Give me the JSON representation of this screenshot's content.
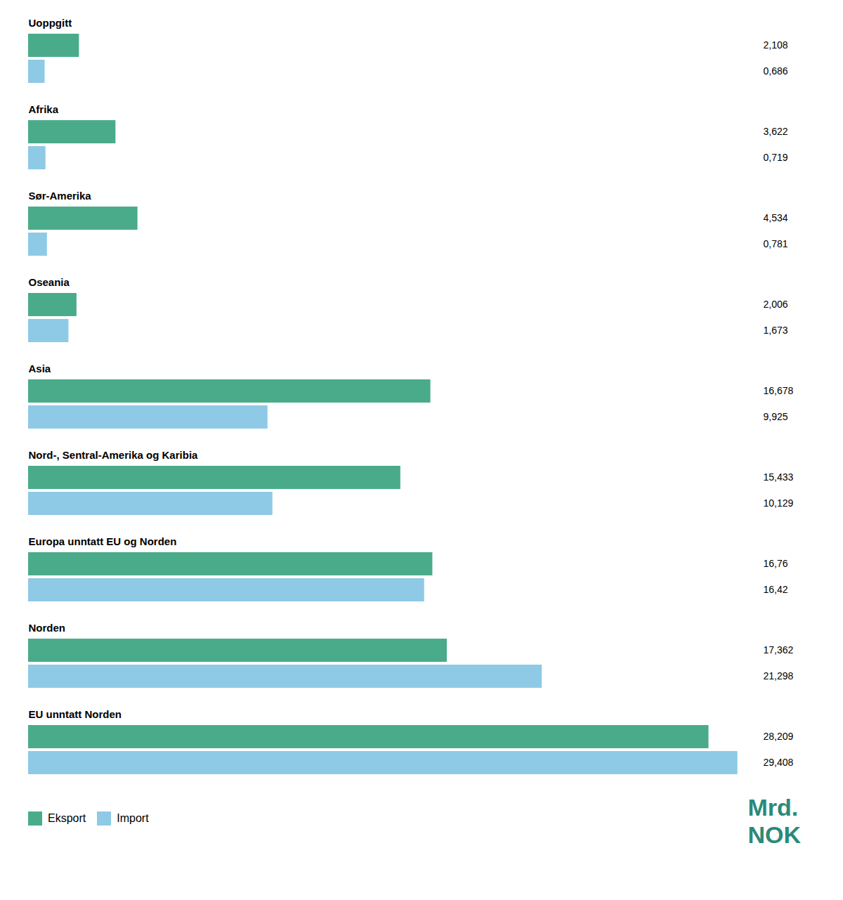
{
  "chart_data": {
    "type": "bar",
    "orientation": "horizontal",
    "categories": [
      "Uoppgitt",
      "Afrika",
      "Sør-Amerika",
      "Oseania",
      "Asia",
      "Nord-, Sentral-Amerika og Karibia",
      "Europa unntatt EU og Norden",
      "Norden",
      "EU unntatt Norden"
    ],
    "series": [
      {
        "name": "Eksport",
        "color": "#4aab8a",
        "values": [
          2.108,
          3.622,
          4.534,
          2.006,
          16.678,
          15.433,
          16.76,
          17.362,
          28.209
        ],
        "value_labels": [
          "2,108",
          "3,622",
          "4,534",
          "2,006",
          "16,678",
          "15,433",
          "16,76",
          "17,362",
          "28,209"
        ]
      },
      {
        "name": "Import",
        "color": "#8ecae6",
        "values": [
          0.686,
          0.719,
          0.781,
          1.673,
          9.925,
          10.129,
          16.42,
          21.298,
          29.408
        ],
        "value_labels": [
          "0,686",
          "0,719",
          "0,781",
          "1,673",
          "9,925",
          "10,129",
          "16,42",
          "21,298",
          "29,408"
        ]
      }
    ],
    "xlim": [
      0,
      30
    ],
    "data_labels": true,
    "tick_labels": false,
    "grid": false,
    "legend": "lower left",
    "annotations": [
      {
        "text": "Mrd.\nNOK",
        "color": "#2a8a7a"
      }
    ]
  }
}
